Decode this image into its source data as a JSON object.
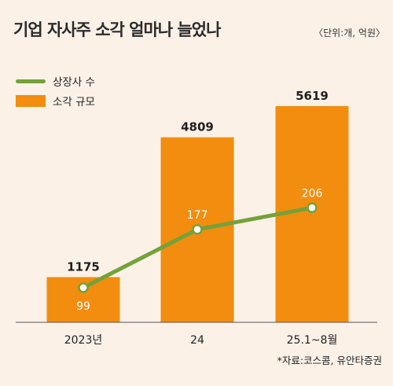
{
  "header": {
    "title": "기업 자사주 소각 얼마나 늘었나",
    "unit": "〈단위:개, 억원〉"
  },
  "legend": {
    "line_label": "상장사 수",
    "bar_label": "소각 규모"
  },
  "source": "*자료:코스콤, 유안타증권",
  "colors": {
    "bar": "#f28d0f",
    "line": "#74a23a",
    "background": "#fbf1e7"
  },
  "chart_data": {
    "type": "bar",
    "categories": [
      "2023년",
      "24",
      "25.1~8월"
    ],
    "series": [
      {
        "name": "소각 규모",
        "type": "bar",
        "values": [
          1175,
          4809,
          5619
        ]
      },
      {
        "name": "상장사 수",
        "type": "line",
        "values": [
          99,
          177,
          206
        ]
      }
    ],
    "grid": false,
    "legend_position": "top-left"
  }
}
